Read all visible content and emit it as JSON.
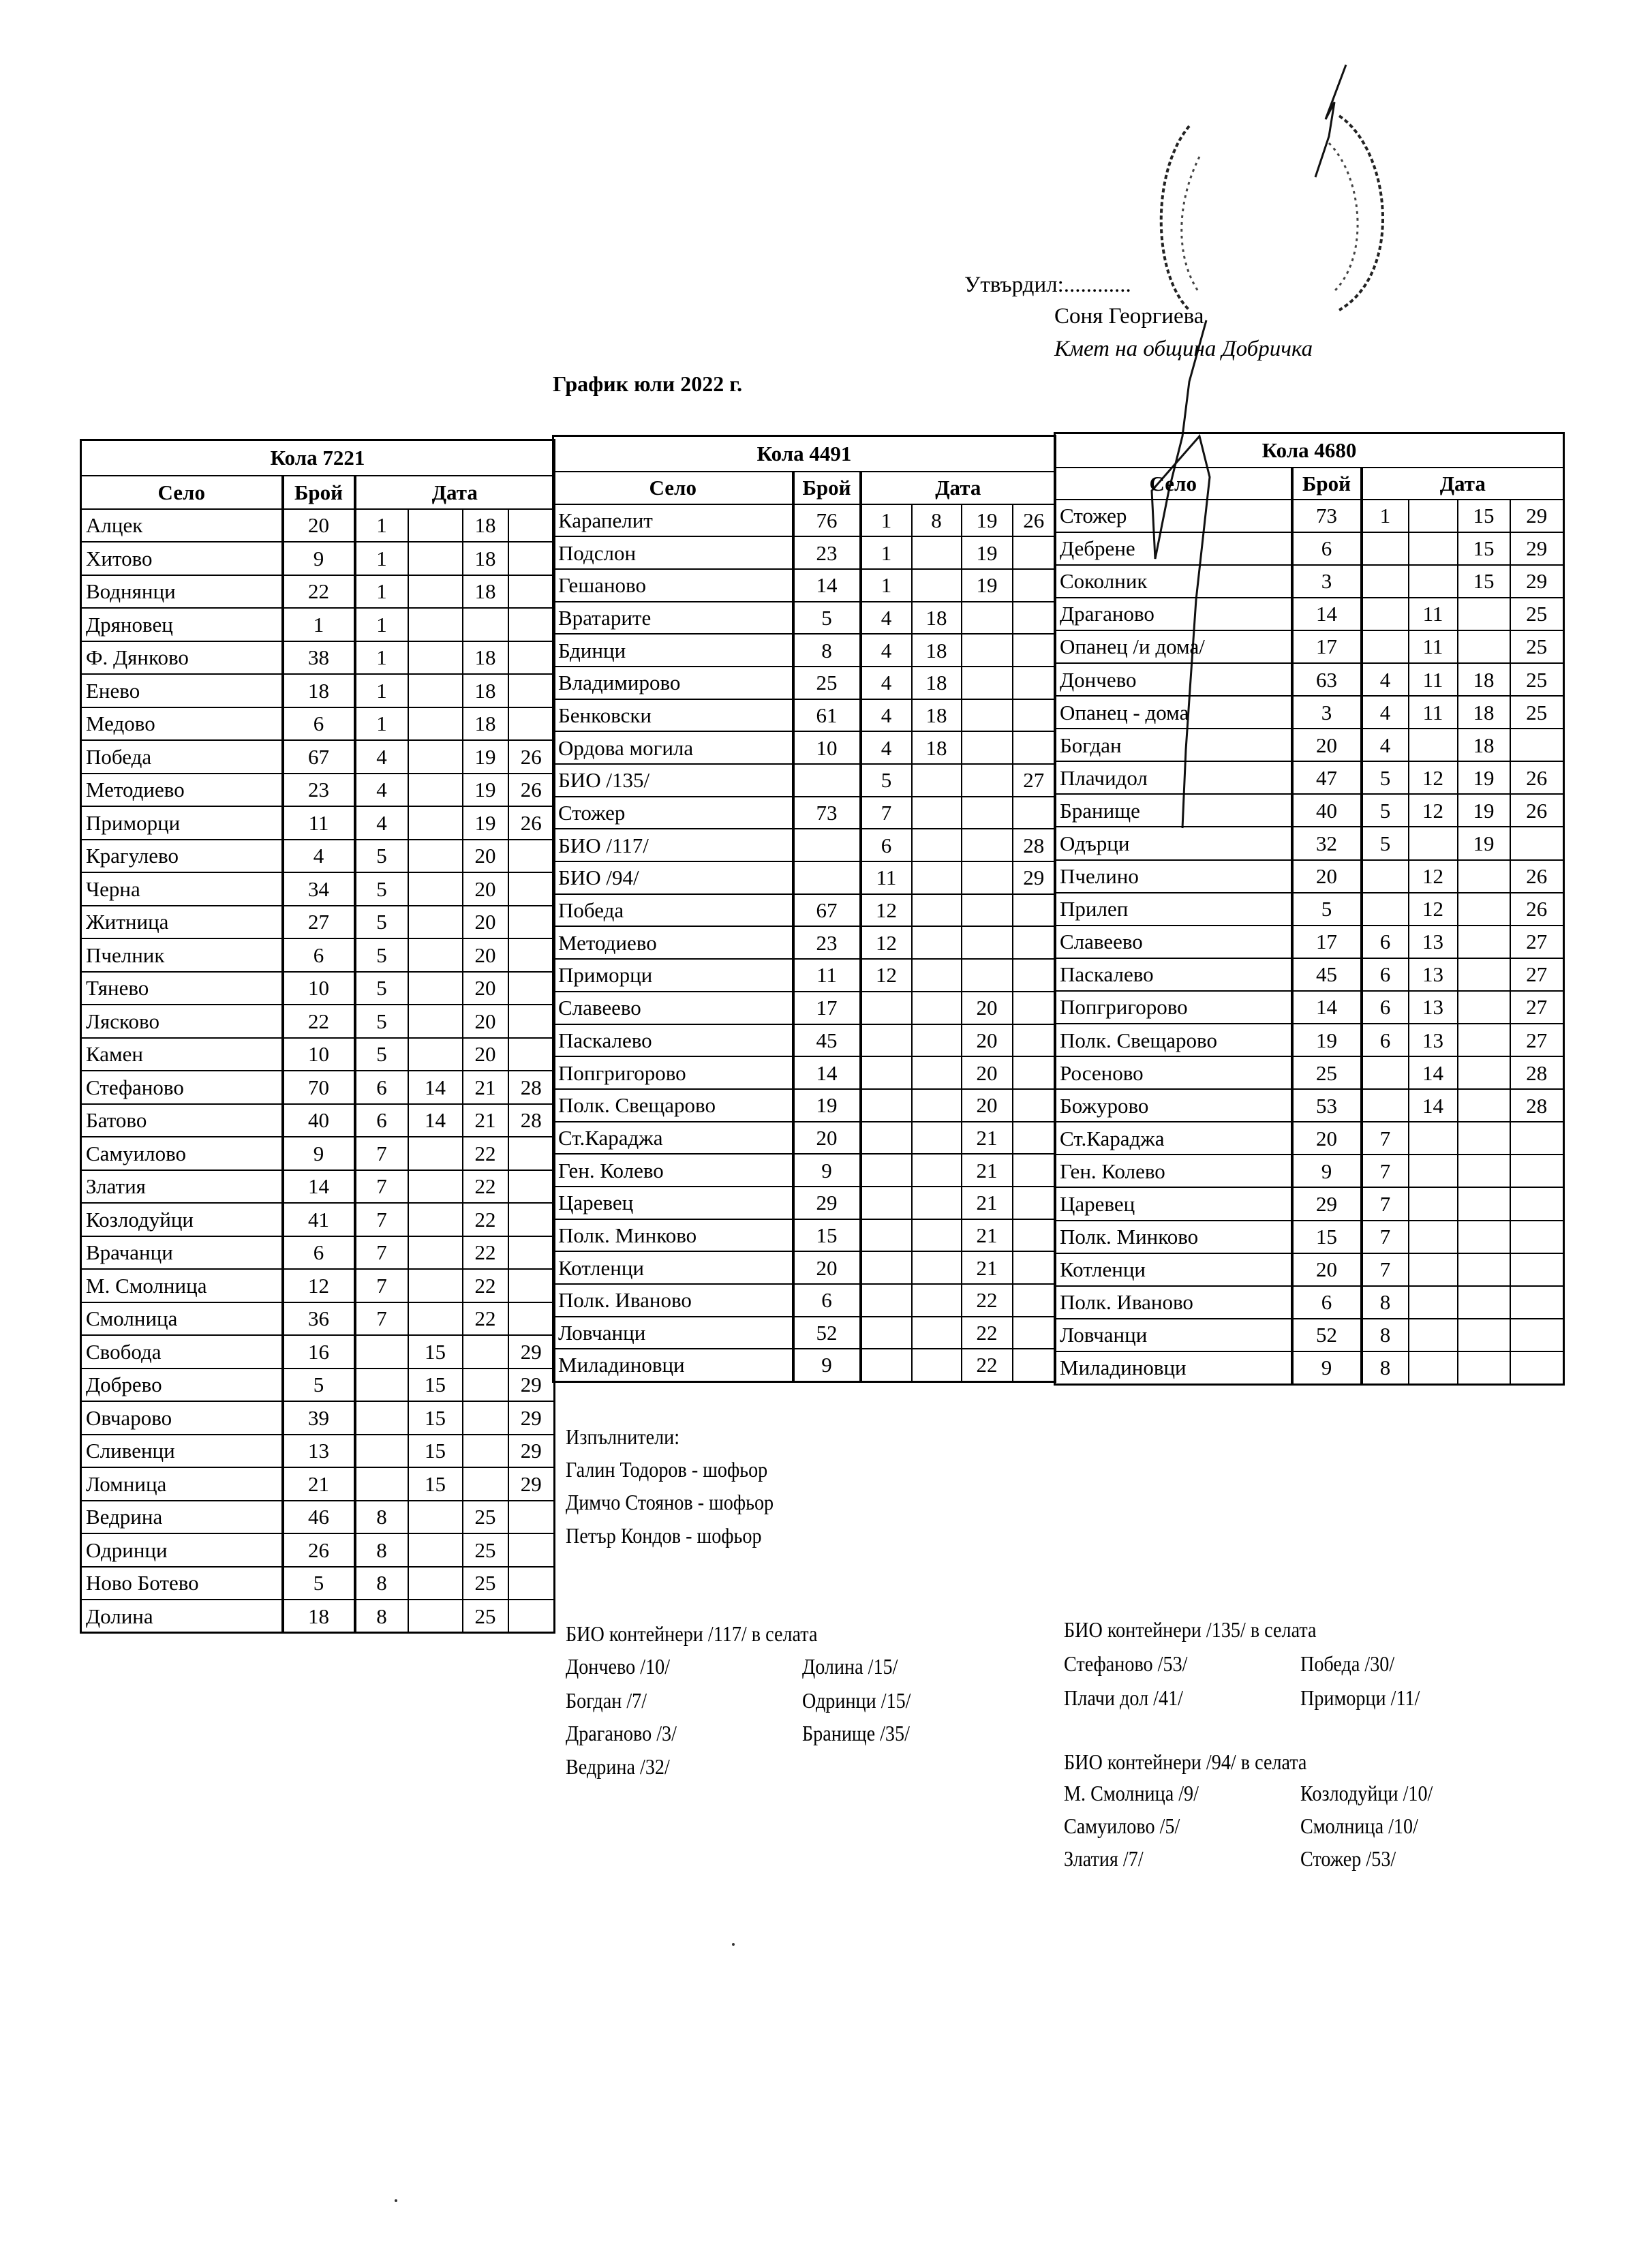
{
  "header": {
    "approved": "Утвърдил:............",
    "approver_name": "Соня Георгиева",
    "approver_title": "Кмет  на община Добричка",
    "title": "График юли 2022 г."
  },
  "columns": {
    "village": "Село",
    "count": "Брой",
    "date": "Дата"
  },
  "tables": [
    {
      "name": "Кола 7221",
      "rows": [
        [
          "Алцек",
          "20",
          "1",
          "",
          "18",
          ""
        ],
        [
          "Хитово",
          "9",
          "1",
          "",
          "18",
          ""
        ],
        [
          "Воднянци",
          "22",
          "1",
          "",
          "18",
          ""
        ],
        [
          "Дряновец",
          "1",
          "1",
          "",
          "",
          ""
        ],
        [
          "Ф. Дянково",
          "38",
          "1",
          "",
          "18",
          ""
        ],
        [
          "Енево",
          "18",
          "1",
          "",
          "18",
          ""
        ],
        [
          "Медово",
          "6",
          "1",
          "",
          "18",
          ""
        ],
        [
          "Победа",
          "67",
          "4",
          "",
          "19",
          "26"
        ],
        [
          "Методиево",
          "23",
          "4",
          "",
          "19",
          "26"
        ],
        [
          "Приморци",
          "11",
          "4",
          "",
          "19",
          "26"
        ],
        [
          "Крагулево",
          "4",
          "5",
          "",
          "20",
          ""
        ],
        [
          "Черна",
          "34",
          "5",
          "",
          "20",
          ""
        ],
        [
          "Житница",
          "27",
          "5",
          "",
          "20",
          ""
        ],
        [
          "Пчелник",
          "6",
          "5",
          "",
          "20",
          ""
        ],
        [
          "Тянево",
          "10",
          "5",
          "",
          "20",
          ""
        ],
        [
          "Лясково",
          "22",
          "5",
          "",
          "20",
          ""
        ],
        [
          "Камен",
          "10",
          "5",
          "",
          "20",
          ""
        ],
        [
          "Стефаново",
          "70",
          "6",
          "14",
          "21",
          "28"
        ],
        [
          "Батово",
          "40",
          "6",
          "14",
          "21",
          "28"
        ],
        [
          "Самуилово",
          "9",
          "7",
          "",
          "22",
          ""
        ],
        [
          "Златия",
          "14",
          "7",
          "",
          "22",
          ""
        ],
        [
          "Козлодуйци",
          "41",
          "7",
          "",
          "22",
          ""
        ],
        [
          "Врачанци",
          "6",
          "7",
          "",
          "22",
          ""
        ],
        [
          "М. Смолница",
          "12",
          "7",
          "",
          "22",
          ""
        ],
        [
          "Смолница",
          "36",
          "7",
          "",
          "22",
          ""
        ],
        [
          "Свобода",
          "16",
          "",
          "15",
          "",
          "29"
        ],
        [
          "Добрево",
          "5",
          "",
          "15",
          "",
          "29"
        ],
        [
          "Овчарово",
          "39",
          "",
          "15",
          "",
          "29"
        ],
        [
          "Сливенци",
          "13",
          "",
          "15",
          "",
          "29"
        ],
        [
          "Ломница",
          "21",
          "",
          "15",
          "",
          "29"
        ],
        [
          "Ведрина",
          "46",
          "8",
          "",
          "25",
          ""
        ],
        [
          "Одринци",
          "26",
          "8",
          "",
          "25",
          ""
        ],
        [
          "Ново Ботево",
          "5",
          "8",
          "",
          "25",
          ""
        ],
        [
          "Долина",
          "18",
          "8",
          "",
          "25",
          ""
        ]
      ]
    },
    {
      "name": "Кола 4491",
      "rows": [
        [
          "Карапелит",
          "76",
          "1",
          "8",
          "19",
          "26"
        ],
        [
          "Подслон",
          "23",
          "1",
          "",
          "19",
          ""
        ],
        [
          "Гешаново",
          "14",
          "1",
          "",
          "19",
          ""
        ],
        [
          "Вратарите",
          "5",
          "4",
          "18",
          "",
          ""
        ],
        [
          "Бдинци",
          "8",
          "4",
          "18",
          "",
          ""
        ],
        [
          "Владимирово",
          "25",
          "4",
          "18",
          "",
          ""
        ],
        [
          "Бенковски",
          "61",
          "4",
          "18",
          "",
          ""
        ],
        [
          "Ордова могила",
          "10",
          "4",
          "18",
          "",
          ""
        ],
        [
          "БИО /135/",
          "",
          "5",
          "",
          "",
          "27"
        ],
        [
          "Стожер",
          "73",
          "7",
          "",
          "",
          ""
        ],
        [
          "БИО /117/",
          "",
          "6",
          "",
          "",
          "28"
        ],
        [
          "БИО /94/",
          "",
          "11",
          "",
          "",
          "29"
        ],
        [
          "Победа",
          "67",
          "12",
          "",
          "",
          ""
        ],
        [
          "Методиево",
          "23",
          "12",
          "",
          "",
          ""
        ],
        [
          "Приморци",
          "11",
          "12",
          "",
          "",
          ""
        ],
        [
          "Славеево",
          "17",
          "",
          "",
          "20",
          ""
        ],
        [
          "Паскалево",
          "45",
          "",
          "",
          "20",
          ""
        ],
        [
          "Попгригорово",
          "14",
          "",
          "",
          "20",
          ""
        ],
        [
          "Полк. Свещарово",
          "19",
          "",
          "",
          "20",
          ""
        ],
        [
          "Ст.Караджа",
          "20",
          "",
          "",
          "21",
          ""
        ],
        [
          "Ген. Колево",
          "9",
          "",
          "",
          "21",
          ""
        ],
        [
          "Царевец",
          "29",
          "",
          "",
          "21",
          ""
        ],
        [
          "Полк. Минково",
          "15",
          "",
          "",
          "21",
          ""
        ],
        [
          "Котленци",
          "20",
          "",
          "",
          "21",
          ""
        ],
        [
          "Полк. Иваново",
          "6",
          "",
          "",
          "22",
          ""
        ],
        [
          "Ловчанци",
          "52",
          "",
          "",
          "22",
          ""
        ],
        [
          "Миладиновци",
          "9",
          "",
          "",
          "22",
          ""
        ]
      ]
    },
    {
      "name": "Кола 4680",
      "rows": [
        [
          "Стожер",
          "73",
          "1",
          "",
          "15",
          "29"
        ],
        [
          "Дебрене",
          "6",
          "",
          "",
          "15",
          "29"
        ],
        [
          "Соколник",
          "3",
          "",
          "",
          "15",
          "29"
        ],
        [
          "Драганово",
          "14",
          "",
          "11",
          "",
          "25"
        ],
        [
          "Опанец /и дома/",
          "17",
          "",
          "11",
          "",
          "25"
        ],
        [
          "Дончево",
          "63",
          "4",
          "11",
          "18",
          "25"
        ],
        [
          "Опанец - дома",
          "3",
          "4",
          "11",
          "18",
          "25"
        ],
        [
          "Богдан",
          "20",
          "4",
          "",
          "18",
          ""
        ],
        [
          "Плачидол",
          "47",
          "5",
          "12",
          "19",
          "26"
        ],
        [
          "Бранище",
          "40",
          "5",
          "12",
          "19",
          "26"
        ],
        [
          "Одърци",
          "32",
          "5",
          "",
          "19",
          ""
        ],
        [
          "Пчелино",
          "20",
          "",
          "12",
          "",
          "26"
        ],
        [
          "Прилеп",
          "5",
          "",
          "12",
          "",
          "26"
        ],
        [
          "Славеево",
          "17",
          "6",
          "13",
          "",
          "27"
        ],
        [
          "Паскалево",
          "45",
          "6",
          "13",
          "",
          "27"
        ],
        [
          "Попгригорово",
          "14",
          "6",
          "13",
          "",
          "27"
        ],
        [
          "Полк. Свещарово",
          "19",
          "6",
          "13",
          "",
          "27"
        ],
        [
          "Росеново",
          "25",
          "",
          "14",
          "",
          "28"
        ],
        [
          "Божурово",
          "53",
          "",
          "14",
          "",
          "28"
        ],
        [
          "Ст.Караджа",
          "20",
          "7",
          "",
          "",
          ""
        ],
        [
          "Ген. Колево",
          "9",
          "7",
          "",
          "",
          ""
        ],
        [
          "Царевец",
          "29",
          "7",
          "",
          "",
          ""
        ],
        [
          "Полк. Минково",
          "15",
          "7",
          "",
          "",
          ""
        ],
        [
          "Котленци",
          "20",
          "7",
          "",
          "",
          ""
        ],
        [
          "Полк. Иваново",
          "6",
          "8",
          "",
          "",
          ""
        ],
        [
          "Ловчанци",
          "52",
          "8",
          "",
          "",
          ""
        ],
        [
          "Миладиновци",
          "9",
          "8",
          "",
          "",
          ""
        ]
      ]
    }
  ],
  "executors": {
    "label": "Изпълнители:",
    "people": [
      "Галин Тодоров - шофьор",
      "Димчо Стоянов - шофьор",
      "Петър Кондов - шофьор"
    ]
  },
  "bio": [
    {
      "title": "БИО контейнери /117/ в селата",
      "col1": [
        "Дончево /10/",
        "Богдан /7/",
        "Драганово /3/",
        "Ведрина /32/"
      ],
      "col2": [
        "Долина /15/",
        "Одринци /15/",
        "Бранище /35/"
      ]
    },
    {
      "title": "БИО контейнери /135/ в селата",
      "col1": [
        "Стефаново /53/",
        "Плачи дол /41/"
      ],
      "col2": [
        "Победа /30/",
        "Приморци /11/"
      ]
    },
    {
      "title": "БИО контейнери /94/ в селата",
      "col1": [
        "М. Смолница /9/",
        "Самуилово /5/",
        "Златия /7/"
      ],
      "col2": [
        "Козлодуйци /10/",
        "Смолница /10/",
        "Стожер /53/"
      ]
    }
  ]
}
